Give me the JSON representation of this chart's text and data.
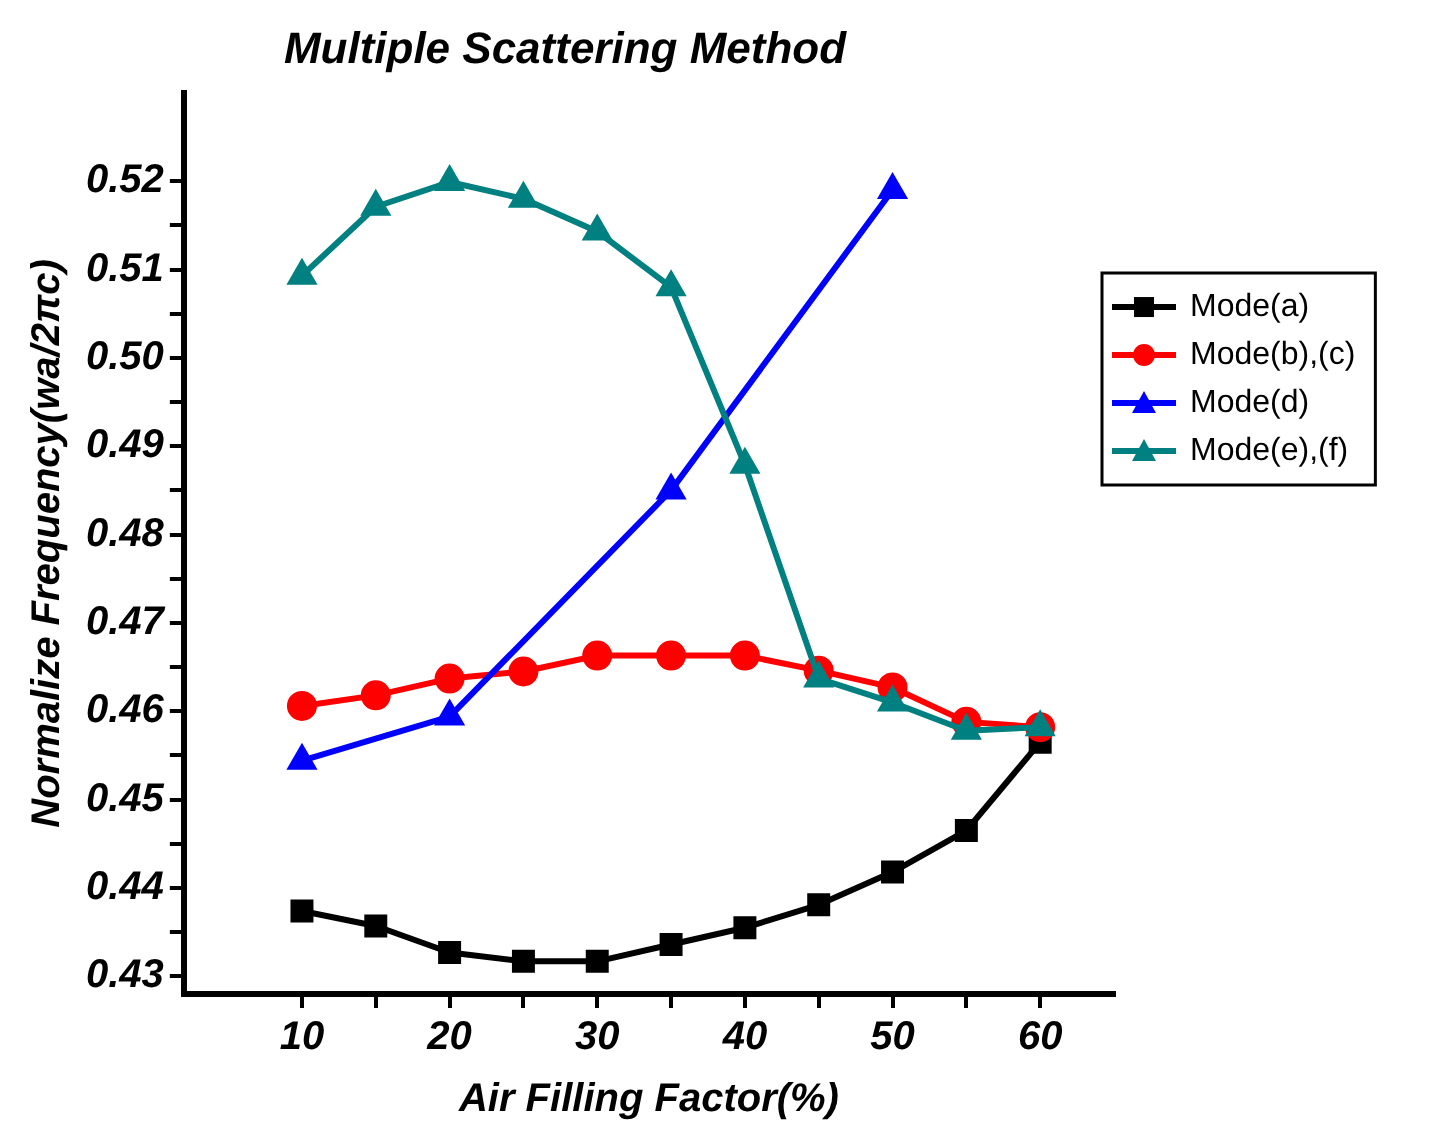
{
  "chart_data": {
    "type": "line",
    "title": "Multiple Scattering Method",
    "xlabel": "Air Filling Factor(%)",
    "ylabel": "Normalize Frequency(wa/2πc)",
    "xlim": [
      2,
      65
    ],
    "xticks": [
      10,
      {
        "value": 15,
        "label": null
      },
      20,
      {
        "value": 25,
        "label": null
      },
      30,
      {
        "value": 35,
        "label": null
      },
      40,
      {
        "value": 45,
        "label": null
      },
      50,
      {
        "value": 55,
        "label": null
      },
      60
    ],
    "ylim": [
      0.428,
      0.53
    ],
    "yticks": [
      0.43,
      {
        "value": 0.435,
        "label": null
      },
      0.44,
      {
        "value": 0.445,
        "label": null
      },
      0.45,
      {
        "value": 0.455,
        "label": null
      },
      0.46,
      {
        "value": 0.465,
        "label": null
      },
      0.47,
      {
        "value": 0.475,
        "label": null
      },
      0.48,
      {
        "value": 0.485,
        "label": null
      },
      0.49,
      {
        "value": 0.495,
        "label": null
      },
      {
        "value": 0.5,
        "label": "0.50"
      },
      {
        "value": 0.505,
        "label": null
      },
      0.51,
      {
        "value": 0.515,
        "label": null
      },
      0.52
    ],
    "grid": false,
    "legend": "right",
    "line_style": "solid",
    "series": [
      {
        "name": "Mode(a)",
        "color": "#000000",
        "marker": "square",
        "x": [
          10,
          15,
          20,
          25,
          30,
          35,
          40,
          45,
          50,
          55,
          60
        ],
        "values": [
          0.4374,
          0.4357,
          0.4327,
          0.4317,
          0.4317,
          0.4336,
          0.4355,
          0.4381,
          0.4418,
          0.4465,
          0.4565
        ]
      },
      {
        "name": "Mode(b),(c)",
        "color": "#ff0000",
        "marker": "circle",
        "x": [
          10,
          15,
          20,
          25,
          30,
          35,
          40,
          45,
          50,
          55,
          60
        ],
        "values": [
          0.4606,
          0.4618,
          0.4637,
          0.4645,
          0.4663,
          0.4663,
          0.4663,
          0.4646,
          0.4627,
          0.4588,
          0.4582
        ]
      },
      {
        "name": "Mode(d)",
        "color": "#0000ff",
        "marker": "triangle",
        "x": [
          10,
          20,
          35,
          50
        ],
        "values": [
          0.4544,
          0.4594,
          0.485,
          0.519
        ]
      },
      {
        "name": "Mode(e),(f)",
        "color": "#008080",
        "marker": "triangle",
        "x": [
          10,
          15,
          20,
          25,
          30,
          35,
          40,
          45,
          50,
          55,
          60
        ],
        "values": [
          0.5093,
          0.5171,
          0.5199,
          0.518,
          0.5143,
          0.508,
          0.4879,
          0.4637,
          0.461,
          0.4578,
          0.4582
        ]
      }
    ]
  }
}
